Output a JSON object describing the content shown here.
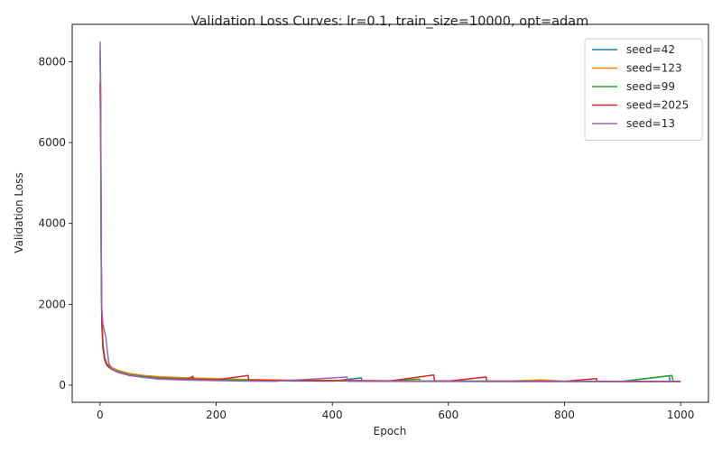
{
  "chart_data": {
    "type": "line",
    "title": "Validation Loss Curves: lr=0.1, train_size=10000, opt=adam",
    "xlabel": "Epoch",
    "ylabel": "Validation Loss",
    "xlim": [
      -48,
      1048
    ],
    "ylim": [
      -425,
      8925
    ],
    "xticks": [
      0,
      200,
      400,
      600,
      800,
      1000
    ],
    "yticks": [
      0,
      2000,
      4000,
      6000,
      8000
    ],
    "grid": false,
    "legend_position": "top-right",
    "series": [
      {
        "name": "seed=42",
        "color": "#1f77b4",
        "points": [
          [
            0,
            8100
          ],
          [
            1,
            7000
          ],
          [
            2,
            3200
          ],
          [
            3,
            1700
          ],
          [
            5,
            1000
          ],
          [
            8,
            680
          ],
          [
            12,
            520
          ],
          [
            20,
            400
          ],
          [
            30,
            320
          ],
          [
            50,
            250
          ],
          [
            75,
            190
          ],
          [
            100,
            160
          ],
          [
            150,
            135
          ],
          [
            200,
            120
          ],
          [
            250,
            112
          ],
          [
            300,
            105
          ],
          [
            400,
            100
          ],
          [
            450,
            180
          ],
          [
            451,
            100
          ],
          [
            500,
            97
          ],
          [
            600,
            95
          ],
          [
            700,
            93
          ],
          [
            800,
            92
          ],
          [
            900,
            91
          ],
          [
            980,
            230
          ],
          [
            982,
            95
          ],
          [
            1000,
            90
          ]
        ]
      },
      {
        "name": "seed=123",
        "color": "#ff7f0e",
        "points": [
          [
            0,
            7500
          ],
          [
            1,
            6200
          ],
          [
            2,
            2900
          ],
          [
            3,
            1600
          ],
          [
            5,
            950
          ],
          [
            8,
            650
          ],
          [
            12,
            530
          ],
          [
            20,
            440
          ],
          [
            30,
            370
          ],
          [
            50,
            290
          ],
          [
            75,
            240
          ],
          [
            100,
            210
          ],
          [
            130,
            190
          ],
          [
            150,
            180
          ],
          [
            200,
            160
          ],
          [
            250,
            140
          ],
          [
            300,
            130
          ],
          [
            400,
            115
          ],
          [
            500,
            105
          ],
          [
            600,
            100
          ],
          [
            700,
            98
          ],
          [
            760,
            130
          ],
          [
            800,
            96
          ],
          [
            900,
            95
          ],
          [
            1000,
            93
          ]
        ]
      },
      {
        "name": "seed=99",
        "color": "#2ca02c",
        "points": [
          [
            0,
            8300
          ],
          [
            1,
            7200
          ],
          [
            2,
            3100
          ],
          [
            3,
            1650
          ],
          [
            5,
            980
          ],
          [
            8,
            670
          ],
          [
            12,
            510
          ],
          [
            20,
            410
          ],
          [
            30,
            340
          ],
          [
            50,
            260
          ],
          [
            75,
            215
          ],
          [
            100,
            185
          ],
          [
            150,
            155
          ],
          [
            200,
            140
          ],
          [
            250,
            125
          ],
          [
            300,
            118
          ],
          [
            400,
            110
          ],
          [
            500,
            105
          ],
          [
            550,
            150
          ],
          [
            551,
            104
          ],
          [
            600,
            102
          ],
          [
            700,
            100
          ],
          [
            800,
            98
          ],
          [
            900,
            96
          ],
          [
            985,
            240
          ],
          [
            987,
            100
          ],
          [
            1000,
            98
          ]
        ]
      },
      {
        "name": "seed=2025",
        "color": "#d62728",
        "points": [
          [
            0,
            7450
          ],
          [
            1,
            6500
          ],
          [
            2,
            3000
          ],
          [
            3,
            1500
          ],
          [
            5,
            900
          ],
          [
            8,
            620
          ],
          [
            12,
            480
          ],
          [
            20,
            390
          ],
          [
            30,
            320
          ],
          [
            50,
            240
          ],
          [
            75,
            195
          ],
          [
            100,
            160
          ],
          [
            150,
            140
          ],
          [
            160,
            220
          ],
          [
            161,
            138
          ],
          [
            200,
            130
          ],
          [
            255,
            240
          ],
          [
            256,
            125
          ],
          [
            300,
            118
          ],
          [
            400,
            110
          ],
          [
            500,
            104
          ],
          [
            575,
            250
          ],
          [
            576,
            103
          ],
          [
            600,
            100
          ],
          [
            665,
            200
          ],
          [
            666,
            99
          ],
          [
            700,
            98
          ],
          [
            800,
            96
          ],
          [
            855,
            160
          ],
          [
            856,
            95
          ],
          [
            900,
            94
          ],
          [
            1000,
            92
          ]
        ]
      },
      {
        "name": "seed=13",
        "color": "#9467bd",
        "points": [
          [
            0,
            8500
          ],
          [
            1,
            7600
          ],
          [
            2,
            3500
          ],
          [
            3,
            1900
          ],
          [
            5,
            1500
          ],
          [
            8,
            1300
          ],
          [
            10,
            1200
          ],
          [
            12,
            900
          ],
          [
            15,
            550
          ],
          [
            20,
            400
          ],
          [
            30,
            320
          ],
          [
            50,
            250
          ],
          [
            75,
            190
          ],
          [
            100,
            150
          ],
          [
            150,
            125
          ],
          [
            200,
            110
          ],
          [
            250,
            100
          ],
          [
            300,
            95
          ],
          [
            425,
            200
          ],
          [
            426,
            93
          ],
          [
            500,
            90
          ],
          [
            600,
            88
          ],
          [
            700,
            86
          ],
          [
            800,
            85
          ],
          [
            900,
            84
          ],
          [
            1000,
            83
          ]
        ]
      }
    ]
  }
}
